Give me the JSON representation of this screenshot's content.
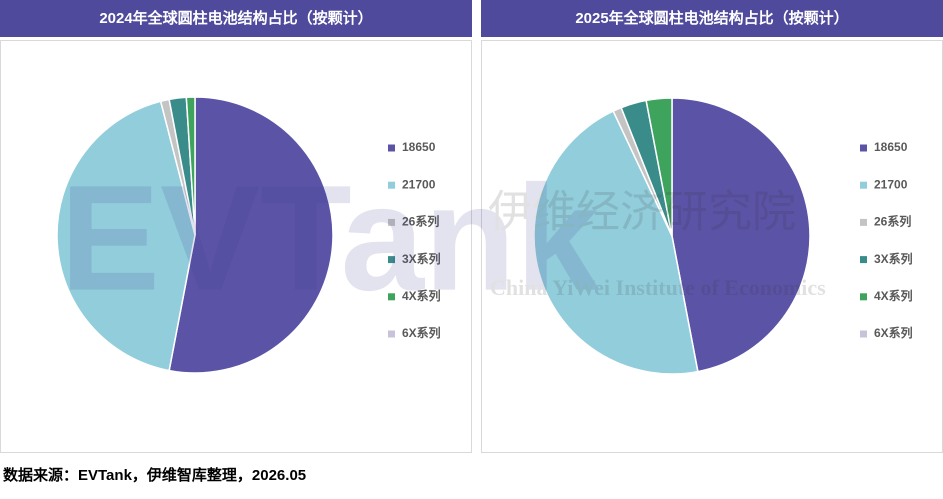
{
  "chart_data": [
    {
      "type": "pie",
      "title": "2024年全球圆柱电池结构占比（按颗计）",
      "categories": [
        "18650",
        "21700",
        "26系列",
        "3X系列",
        "4X系列",
        "6X系列"
      ],
      "values": [
        53,
        43,
        1,
        2,
        1,
        0
      ],
      "colors": [
        "#5b53a6",
        "#92cddc",
        "#c4c4c4",
        "#3a8c8a",
        "#3da35d",
        "#c9c3da"
      ]
    },
    {
      "type": "pie",
      "title": "2025年全球圆柱电池结构占比（按颗计）",
      "categories": [
        "18650",
        "21700",
        "26系列",
        "3X系列",
        "4X系列",
        "6X系列"
      ],
      "values": [
        47,
        46,
        1,
        3,
        3,
        0
      ],
      "colors": [
        "#5b53a6",
        "#92cddc",
        "#c4c4c4",
        "#3a8c8a",
        "#3da35d",
        "#c9c3da"
      ]
    }
  ],
  "watermark": {
    "logo": "EVTank",
    "name": "伊维经济研究院",
    "name_en": "China YiWei Institute of Economics"
  },
  "source": "数据来源：EVTank，伊维智库整理，2026.05"
}
